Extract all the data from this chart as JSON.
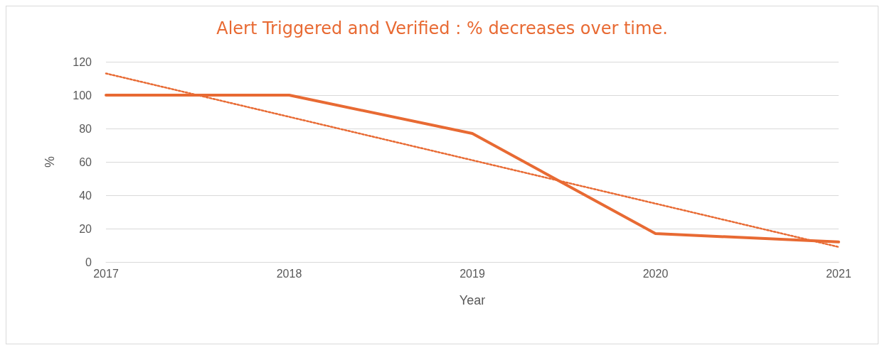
{
  "chart_data": {
    "type": "line",
    "title": "Alert Triggered and Verified : % decreases over time.",
    "xlabel": "Year",
    "ylabel": "%",
    "categories": [
      "2017",
      "2018",
      "2019",
      "2020",
      "2021"
    ],
    "series": [
      {
        "color": "#e86a33",
        "values": [
          100,
          100,
          77,
          17,
          12
        ],
        "line_style": "solid"
      },
      {
        "type": "line",
        "color": "#e86a33",
        "values": [
          113,
          87,
          61,
          35,
          9
        ],
        "line_style": "dotted"
      }
    ],
    "ylim": [
      0,
      120
    ],
    "yticks": [
      0,
      20,
      40,
      60,
      80,
      100,
      120
    ],
    "grid": "y",
    "marker": "none"
  }
}
